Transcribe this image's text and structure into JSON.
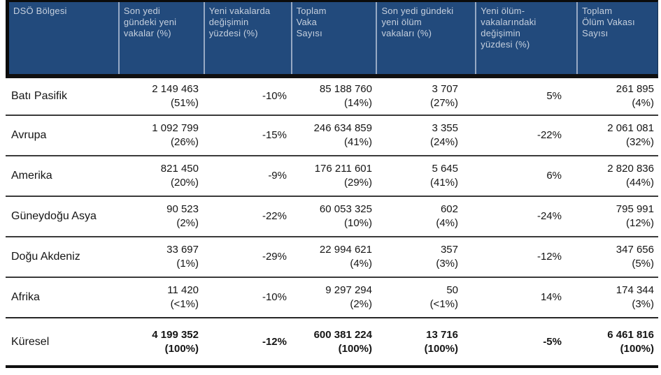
{
  "colors": {
    "header_bg": "#224a7c",
    "header_text": "#c6d0de",
    "body_text": "#151515",
    "header_divider": "#97a9c4",
    "row_line": "#3a3a3a"
  },
  "table": {
    "columns": [
      {
        "id": "region",
        "label": "DSÖ Bölgesi"
      },
      {
        "id": "new-cases",
        "label": "Son yedi\ngündeki yeni\nvakalar (%)"
      },
      {
        "id": "case-change",
        "label": "Yeni vakalarda\ndeğişimin\nyüzdesi (%)"
      },
      {
        "id": "total-cases",
        "label": "Toplam\nVaka\nSayısı"
      },
      {
        "id": "new-deaths",
        "label": "Son yedi gündeki\nyeni ölüm\nvakaları (%)"
      },
      {
        "id": "death-change",
        "label": "Yeni ölüm-\nvakalarındaki\ndeğişimin\nyüzdesi (%)"
      },
      {
        "id": "total-deaths",
        "label": "Toplam\nÖlüm Vakası\nSayısı"
      }
    ],
    "rows": [
      {
        "id": "bati-pasifik",
        "region": "Batı Pasifik",
        "new_cases": "2 149 463",
        "new_cases_pct": "(51%)",
        "case_change": "-10%",
        "total_cases": "85 188 760",
        "total_cases_pct": "(14%)",
        "new_deaths": "3 707",
        "new_deaths_pct": "(27%)",
        "death_change": "5%",
        "total_deaths": "261 895",
        "total_deaths_pct": "(4%)",
        "bold": false
      },
      {
        "id": "avrupa",
        "region": "Avrupa",
        "new_cases": "1 092 799",
        "new_cases_pct": "(26%)",
        "case_change": "-15%",
        "total_cases": "246 634 859",
        "total_cases_pct": "(41%)",
        "new_deaths": "3 355",
        "new_deaths_pct": "(24%)",
        "death_change": "-22%",
        "total_deaths": "2 061 081",
        "total_deaths_pct": "(32%)",
        "bold": false
      },
      {
        "id": "amerika",
        "region": "Amerika",
        "new_cases": "821 450",
        "new_cases_pct": "(20%)",
        "case_change": "-9%",
        "total_cases": "176 211 601",
        "total_cases_pct": "(29%)",
        "new_deaths": "5 645",
        "new_deaths_pct": "(41%)",
        "death_change": "6%",
        "total_deaths": "2 820 836",
        "total_deaths_pct": "(44%)",
        "bold": false
      },
      {
        "id": "guneydogu-asya",
        "region": "Güneydoğu Asya",
        "new_cases": "90 523",
        "new_cases_pct": "(2%)",
        "case_change": "-22%",
        "total_cases": "60 053 325",
        "total_cases_pct": "(10%)",
        "new_deaths": "602",
        "new_deaths_pct": "(4%)",
        "death_change": "-24%",
        "total_deaths": "795 991",
        "total_deaths_pct": "(12%)",
        "bold": false
      },
      {
        "id": "dogu-akdeniz",
        "region": "Doğu Akdeniz",
        "new_cases": "33 697",
        "new_cases_pct": "(1%)",
        "case_change": "-29%",
        "total_cases": "22 994 621",
        "total_cases_pct": "(4%)",
        "new_deaths": "357",
        "new_deaths_pct": "(3%)",
        "death_change": "-12%",
        "total_deaths": "347 656",
        "total_deaths_pct": "(5%)",
        "bold": false
      },
      {
        "id": "afrika",
        "region": "Afrika",
        "new_cases": "11 420",
        "new_cases_pct": "(<1%)",
        "case_change": "-10%",
        "total_cases": "9 297 294",
        "total_cases_pct": "(2%)",
        "new_deaths": "50",
        "new_deaths_pct": "(<1%)",
        "death_change": "14%",
        "total_deaths": "174 344",
        "total_deaths_pct": "(3%)",
        "bold": false
      },
      {
        "id": "kuresel",
        "region": "Küresel",
        "new_cases": "4 199 352",
        "new_cases_pct": "(100%)",
        "case_change": "-12%",
        "total_cases": "600 381 224",
        "total_cases_pct": "(100%)",
        "new_deaths": "13 716",
        "new_deaths_pct": "(100%)",
        "death_change": "-5%",
        "total_deaths": "6 461 816",
        "total_deaths_pct": "(100%)",
        "bold": true
      }
    ]
  }
}
